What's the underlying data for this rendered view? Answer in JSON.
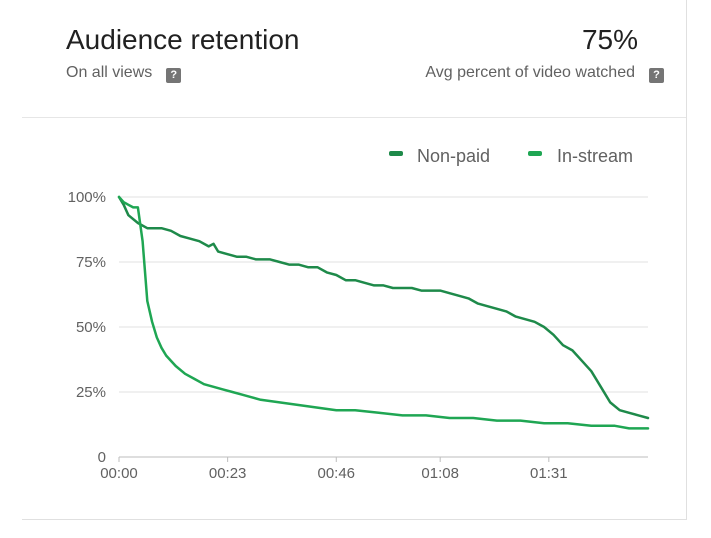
{
  "header": {
    "title": "Audience retention",
    "subtitle": "On all views",
    "value": "75%",
    "value_label": "Avg percent of video watched",
    "help_glyph": "?"
  },
  "colors": {
    "nonpaid": "#1e8a4a",
    "instream": "#1fa653",
    "grid": "#e0e0e0",
    "axis": "#bdbdbd"
  },
  "chart_data": {
    "type": "line",
    "title": "",
    "xlabel": "",
    "ylabel": "",
    "ylim": [
      0,
      100
    ],
    "xlim_seconds": [
      0,
      112
    ],
    "y_ticks": [
      "0",
      "25%",
      "50%",
      "75%",
      "100%"
    ],
    "x_ticks": [
      "00:00",
      "00:23",
      "00:46",
      "01:08",
      "01:31"
    ],
    "x_tick_values": [
      0,
      23,
      46,
      68,
      91
    ],
    "legend_position": "top-right",
    "grid": true,
    "series": [
      {
        "name": "Non-paid",
        "x": [
          0,
          1,
          2,
          4,
          6,
          8,
          9,
          11,
          13,
          15,
          17,
          19,
          20,
          21,
          23,
          25,
          27,
          29,
          30,
          32,
          34,
          36,
          38,
          40,
          42,
          44,
          46,
          48,
          50,
          52,
          54,
          56,
          58,
          60,
          62,
          64,
          66,
          68,
          70,
          72,
          74,
          76,
          78,
          80,
          82,
          84,
          86,
          88,
          90,
          92,
          94,
          96,
          98,
          100,
          102,
          104,
          106,
          108,
          110,
          112
        ],
        "values": [
          100,
          97,
          93,
          90,
          88,
          88,
          88,
          87,
          85,
          84,
          83,
          81,
          82,
          79,
          78,
          77,
          77,
          76,
          76,
          76,
          75,
          74,
          74,
          73,
          73,
          71,
          70,
          68,
          68,
          67,
          66,
          66,
          65,
          65,
          65,
          64,
          64,
          64,
          63,
          62,
          61,
          59,
          58,
          57,
          56,
          54,
          53,
          52,
          50,
          47,
          43,
          41,
          37,
          33,
          27,
          21,
          18,
          17,
          16,
          15
        ]
      },
      {
        "name": "In-stream",
        "x": [
          0,
          1,
          2,
          3,
          4,
          5,
          6,
          7,
          8,
          9,
          10,
          12,
          14,
          16,
          18,
          20,
          22,
          24,
          26,
          28,
          30,
          34,
          38,
          42,
          46,
          50,
          55,
          60,
          65,
          70,
          75,
          80,
          85,
          90,
          95,
          100,
          105,
          108,
          112
        ],
        "values": [
          100,
          98,
          97,
          96,
          96,
          83,
          60,
          52,
          46,
          42,
          39,
          35,
          32,
          30,
          28,
          27,
          26,
          25,
          24,
          23,
          22,
          21,
          20,
          19,
          18,
          18,
          17,
          16,
          16,
          15,
          15,
          14,
          14,
          13,
          13,
          12,
          12,
          11,
          11
        ]
      }
    ]
  }
}
